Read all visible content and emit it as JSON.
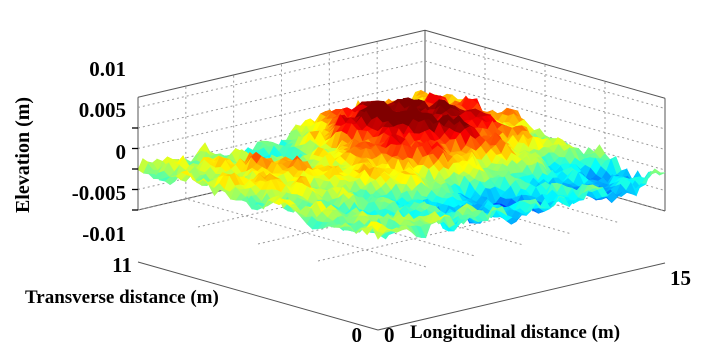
{
  "chart_data": {
    "type": "surface3d",
    "title": "",
    "zlabel": "Elevation (m)",
    "xlabel": "Longitudinal distance (m)",
    "ylabel": "Transverse distance (m)",
    "zlim": [
      -0.01,
      0.01
    ],
    "xlim": [
      0,
      15
    ],
    "ylim": [
      0,
      11
    ],
    "z_ticks": [
      "0.01",
      "0.005",
      "0",
      "-0.005",
      "-0.01"
    ],
    "x_ticks": [
      "0",
      "15"
    ],
    "y_ticks": [
      "11",
      "0"
    ],
    "grid": true,
    "colormap": "jet",
    "surface_description_peaks": [
      {
        "x": 9.0,
        "y": 8.5,
        "z": 0.0085
      },
      {
        "x": 11.0,
        "y": 6.0,
        "z": 0.006
      },
      {
        "x": 7.5,
        "y": 5.0,
        "z": 0.004
      },
      {
        "x": 3.0,
        "y": 7.5,
        "z": 0.003
      },
      {
        "x": 13.5,
        "y": 8.5,
        "z": 0.004
      }
    ],
    "surface_description_valleys": [
      {
        "x": 6.5,
        "y": 9.5,
        "z": -0.004
      },
      {
        "x": 8.0,
        "y": 2.0,
        "z": -0.005
      },
      {
        "x": 13.0,
        "y": 1.5,
        "z": -0.0045
      },
      {
        "x": 4.0,
        "y": 2.5,
        "z": -0.002
      }
    ]
  }
}
